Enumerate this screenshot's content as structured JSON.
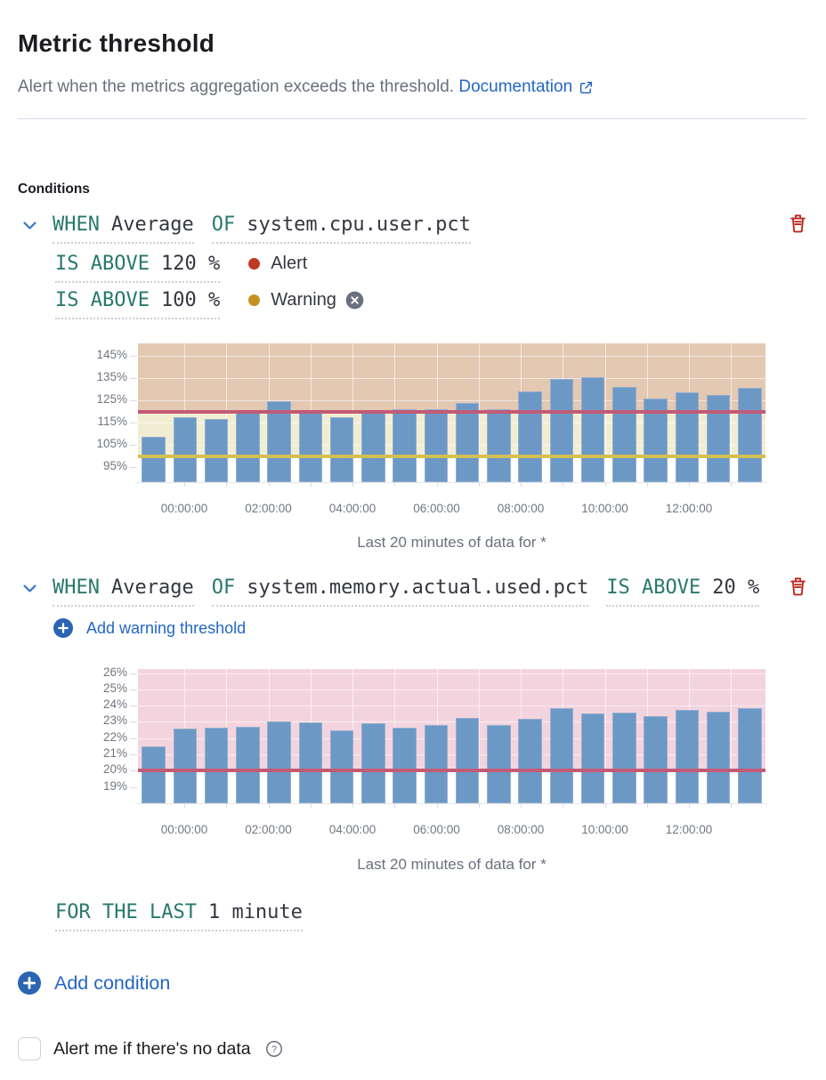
{
  "header": {
    "title": "Metric threshold",
    "subtitle": "Alert when the metrics aggregation exceeds the threshold.",
    "doc_link_label": "Documentation"
  },
  "conditions": {
    "section_label": "Conditions",
    "condition1": {
      "when_keyword": "WHEN",
      "aggregation": "Average",
      "of_keyword": "OF",
      "metric": "system.cpu.user.pct",
      "alert_threshold": {
        "clause": "IS ABOVE",
        "value": "120 %",
        "label": "Alert"
      },
      "warning_threshold": {
        "clause": "IS ABOVE",
        "value": "100 %",
        "label": "Warning"
      }
    },
    "condition2": {
      "when_keyword": "WHEN",
      "aggregation": "Average",
      "of_keyword": "OF",
      "metric": "system.memory.actual.used.pct",
      "alert_threshold": {
        "clause": "IS ABOVE",
        "value": "20 %"
      },
      "add_warning_label": "Add warning threshold"
    },
    "for_the_last": {
      "keyword": "FOR THE LAST",
      "value": "1 minute"
    },
    "add_condition_label": "Add condition"
  },
  "no_data": {
    "label": "Alert me if there's no data"
  },
  "colors": {
    "link_blue": "#2366c4",
    "keyword_teal": "#27796c",
    "expression_dark": "#343741",
    "danger_red": "#bd271e",
    "alert_dot_red": "#bd3b26",
    "warning_dot_gold": "#c49227",
    "bar_blue": "#6c98c5",
    "threshold_line_red": "#c25b76",
    "threshold_line_yellow": "#d2c053",
    "alert_zone_tan": "#e3c8b2",
    "warning_zone_yellow": "#f1edd3",
    "alert_zone_pink": "#f3d4de"
  },
  "chart_data": [
    {
      "type": "bar",
      "caption": "Last 20 minutes of data for *",
      "xlabel": "",
      "ylabel": "percent",
      "x_tick_labels": [
        "00:00:00",
        "02:00:00",
        "04:00:00",
        "06:00:00",
        "08:00:00",
        "10:00:00",
        "12:00:00"
      ],
      "y_ticks": [
        95,
        105,
        115,
        125,
        135,
        145
      ],
      "y_tick_suffix": "%",
      "ylim": [
        88.2,
        150.6
      ],
      "values": [
        108.5,
        117.5,
        116.5,
        120,
        124.5,
        120,
        117.5,
        119.5,
        121,
        121,
        124,
        121,
        129,
        134.5,
        135.5,
        131,
        126,
        128.5,
        127.5,
        130.5
      ],
      "thresholds": [
        {
          "name": "alert",
          "value": 120,
          "line_color": "#c25b76",
          "zone_color": "#e3c8b2",
          "zone_to": "top"
        },
        {
          "name": "warning",
          "value": 100,
          "line_color": "#d2c053",
          "zone_color": "#f1edd3",
          "zone_to": 120
        }
      ],
      "legend": "off",
      "grid": "on"
    },
    {
      "type": "bar",
      "caption": "Last 20 minutes of data for *",
      "xlabel": "",
      "ylabel": "percent",
      "x_tick_labels": [
        "00:00:00",
        "02:00:00",
        "04:00:00",
        "06:00:00",
        "08:00:00",
        "10:00:00",
        "12:00:00"
      ],
      "y_ticks": [
        19,
        20,
        21,
        22,
        23,
        24,
        25,
        26
      ],
      "y_tick_suffix": "%",
      "ylim": [
        18.0,
        26.25
      ],
      "values": [
        21.5,
        22.6,
        22.65,
        22.7,
        23.05,
        22.95,
        22.5,
        22.9,
        22.65,
        22.8,
        23.25,
        22.8,
        23.2,
        23.85,
        23.5,
        23.55,
        23.35,
        23.75,
        23.65,
        23.85
      ],
      "thresholds": [
        {
          "name": "alert",
          "value": 20,
          "line_color": "#c25b76",
          "zone_color": "#f3d4de",
          "zone_to": "top"
        }
      ],
      "legend": "off",
      "grid": "on"
    }
  ]
}
